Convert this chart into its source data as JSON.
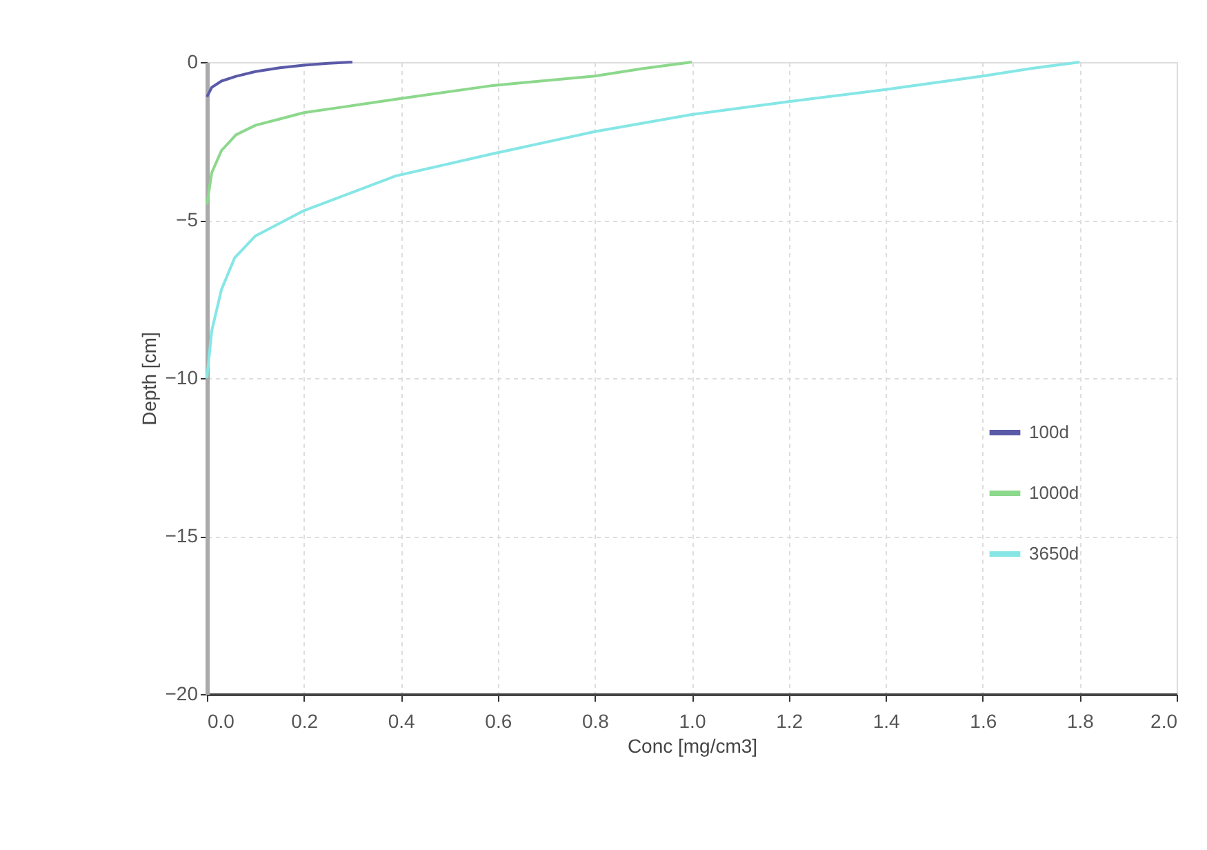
{
  "chart_data": {
    "type": "line",
    "xlabel": "Conc [mg/cm3]",
    "ylabel": "Depth [cm]",
    "xlim": [
      0,
      2.0
    ],
    "xticks": [
      {
        "value": 0,
        "label": "0.0"
      },
      0.2,
      0.4,
      0.6,
      0.8,
      {
        "value": 1,
        "label": "1.0"
      },
      1.2,
      1.4,
      1.6,
      1.8,
      {
        "value": 2,
        "label": "2.0"
      }
    ],
    "ylim": [
      -20,
      0
    ],
    "yticks": [
      -20,
      -15,
      -10,
      -5,
      0
    ],
    "grid": true,
    "legend": "right",
    "line_style": "solid",
    "marker": "none",
    "series": [
      {
        "name": "100d",
        "color": "#5a5aa8",
        "x": [
          0,
          0.01,
          0.03,
          0.06,
          0.1,
          0.15,
          0.2,
          0.25,
          0.3
        ],
        "values": [
          -1.1,
          -0.8,
          -0.6,
          -0.45,
          -0.3,
          -0.18,
          -0.1,
          -0.04,
          0
        ]
      },
      {
        "name": "1000d",
        "color": "#8cd88c",
        "x": [
          0,
          0.01,
          0.03,
          0.06,
          0.1,
          0.15,
          0.2,
          0.29,
          0.4,
          0.59,
          0.8,
          0.9,
          1.0
        ],
        "values": [
          -4.5,
          -3.5,
          -2.8,
          -2.3,
          -2.0,
          -1.8,
          -1.6,
          -1.4,
          -1.15,
          -0.74,
          -0.44,
          -0.2,
          0
        ]
      },
      {
        "name": "3650d",
        "color": "#86e6e6",
        "x": [
          0,
          0.01,
          0.03,
          0.057,
          0.1,
          0.2,
          0.39,
          0.59,
          0.8,
          1.0,
          1.2,
          1.4,
          1.6,
          1.7,
          1.8
        ],
        "values": [
          -10,
          -8.5,
          -7.2,
          -6.2,
          -5.5,
          -4.7,
          -3.6,
          -2.9,
          -2.2,
          -1.66,
          -1.25,
          -0.87,
          -0.44,
          -0.2,
          0
        ]
      }
    ]
  }
}
